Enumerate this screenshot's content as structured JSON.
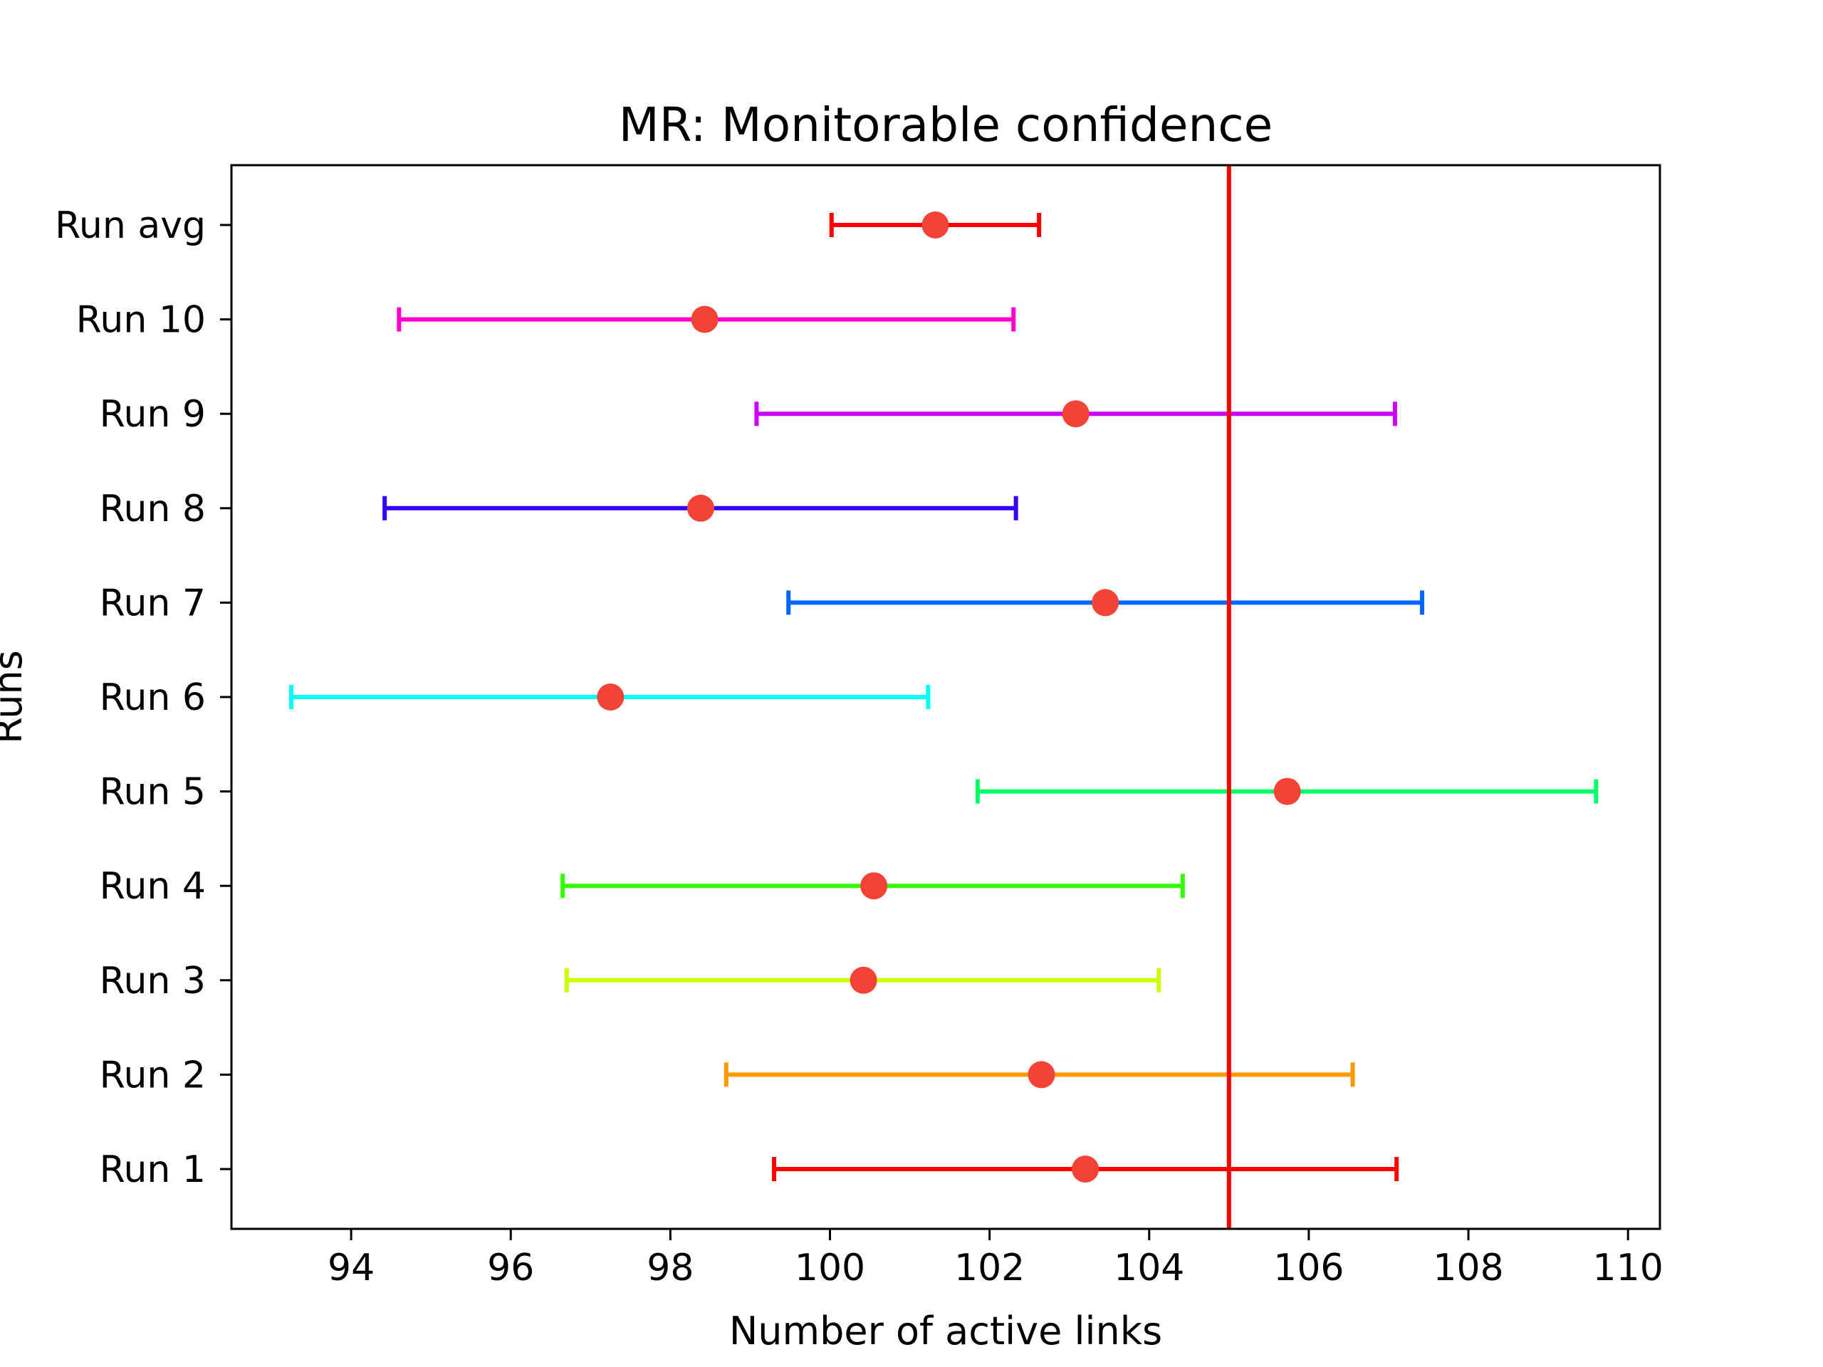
{
  "chart_data": {
    "type": "errorbar",
    "title": "MR: Monitorable confidence",
    "xlabel": "Number of active links",
    "ylabel": "Runs",
    "xlim": [
      92.5,
      110.4
    ],
    "xticks": [
      94,
      96,
      98,
      100,
      102,
      104,
      106,
      108,
      110
    ],
    "reference_line": {
      "x": 105,
      "color": "#ff0000"
    },
    "marker_color": "#f44336",
    "grid": false,
    "series": [
      {
        "label": "Run 1",
        "mean": 103.2,
        "lower": 99.3,
        "upper": 107.1,
        "color": "#ff0000"
      },
      {
        "label": "Run 2",
        "mean": 102.65,
        "lower": 98.7,
        "upper": 106.55,
        "color": "#ff9900"
      },
      {
        "label": "Run 3",
        "mean": 100.42,
        "lower": 96.7,
        "upper": 104.12,
        "color": "#ccff00"
      },
      {
        "label": "Run 4",
        "mean": 100.55,
        "lower": 96.65,
        "upper": 104.42,
        "color": "#33ff00"
      },
      {
        "label": "Run 5",
        "mean": 105.73,
        "lower": 101.85,
        "upper": 109.6,
        "color": "#00ff66"
      },
      {
        "label": "Run 6",
        "mean": 97.25,
        "lower": 93.25,
        "upper": 101.23,
        "color": "#00ffff"
      },
      {
        "label": "Run 7",
        "mean": 103.45,
        "lower": 99.48,
        "upper": 107.42,
        "color": "#0066ff"
      },
      {
        "label": "Run 8",
        "mean": 98.38,
        "lower": 94.42,
        "upper": 102.33,
        "color": "#3300ff"
      },
      {
        "label": "Run 9",
        "mean": 103.08,
        "lower": 99.08,
        "upper": 107.08,
        "color": "#cc00ff"
      },
      {
        "label": "Run 10",
        "mean": 98.43,
        "lower": 94.6,
        "upper": 102.3,
        "color": "#ff00cc"
      },
      {
        "label": "Run avg",
        "mean": 101.32,
        "lower": 100.02,
        "upper": 102.62,
        "color": "#ff0000"
      }
    ]
  }
}
